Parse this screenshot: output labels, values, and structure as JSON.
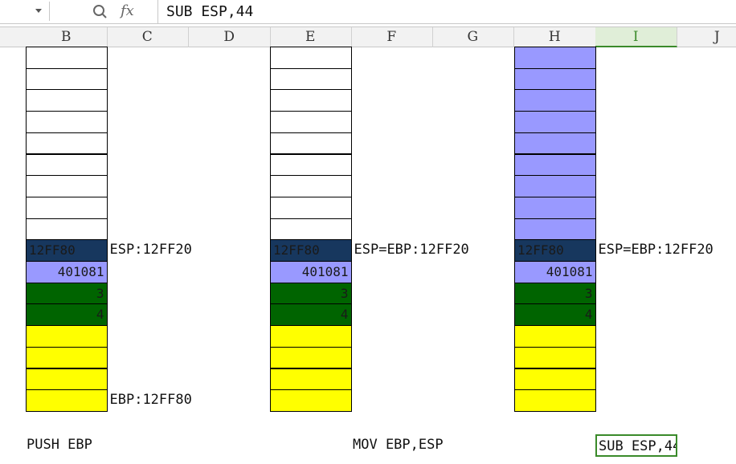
{
  "formula_bar": {
    "icons": [
      "fx"
    ],
    "content": "SUB ESP,44"
  },
  "columns": [
    "B",
    "C",
    "D",
    "E",
    "F",
    "G",
    "H",
    "I",
    "J"
  ],
  "active_column": 7,
  "stacks": [
    {
      "column": 0,
      "empty_color": "#ffffff",
      "cells": [
        "12FF80",
        "401081",
        "3",
        "4"
      ],
      "esp_label": "ESP:12FF20",
      "ebp_label": "EBP:12FF80",
      "command": "PUSH EBP"
    },
    {
      "column": 3,
      "empty_color": "#ffffff",
      "cells": [
        "12FF80",
        "401081",
        "3",
        "4"
      ],
      "esp_label": "ESP=EBP:12FF20",
      "command": "MOV EBP,ESP"
    },
    {
      "column": 6,
      "empty_color": "#9999ff",
      "cells": [
        "12FF80",
        "401081",
        "3",
        "4"
      ],
      "esp_label": "ESP=EBP:12FF20",
      "command": "SUB ESP,44"
    }
  ]
}
